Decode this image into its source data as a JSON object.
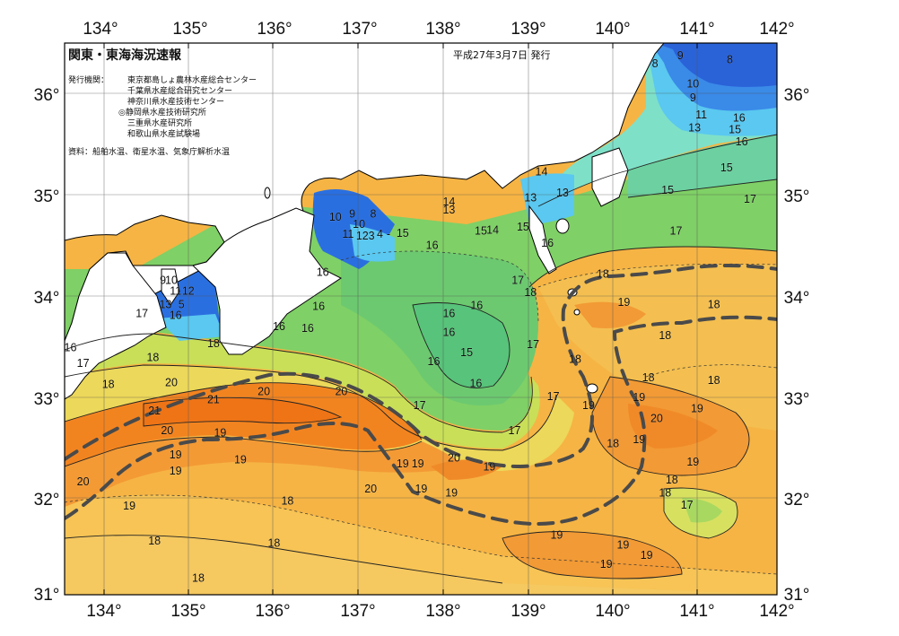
{
  "header": {
    "title": "関東・東海海況速報",
    "date": "平成27年3月7日 発行",
    "issuers_label": "発行機関：",
    "issuers": [
      "東京都島しょ農林水産総合センター",
      "千葉県水産総合研究センター",
      "神奈川県水産技術センター",
      "◎静岡県水産技術研究所",
      "三重県水産研究所",
      "和歌山県水産試験場"
    ],
    "sources": "資料：船舶水温、衛星水温、気象庁解析水温"
  },
  "axes": {
    "lon_labels": [
      "134°",
      "135°",
      "136°",
      "137°",
      "138°",
      "139°",
      "140°",
      "141°",
      "142°"
    ],
    "lat_labels": [
      "36°",
      "35°",
      "34°",
      "33°",
      "32°",
      "31°"
    ]
  },
  "legend_colors": {
    "cold": "#2a6fe0",
    "cool": "#5ad0f0",
    "mid": "#6ad070",
    "warm": "#f0d060",
    "hot": "#f08020",
    "land": "#ffffff",
    "kuroshio_axis": "#555555"
  },
  "contour_labels": [
    {
      "text": "8",
      "lon": 140.55,
      "lat": 36.26
    },
    {
      "text": "9",
      "lon": 140.85,
      "lat": 36.34
    },
    {
      "text": "8",
      "lon": 141.44,
      "lat": 36.3
    },
    {
      "text": "10",
      "lon": 141.0,
      "lat": 36.06
    },
    {
      "text": "9",
      "lon": 141.0,
      "lat": 35.92
    },
    {
      "text": "11",
      "lon": 141.1,
      "lat": 35.75
    },
    {
      "text": "16",
      "lon": 141.55,
      "lat": 35.72
    },
    {
      "text": "13",
      "lon": 141.02,
      "lat": 35.62
    },
    {
      "text": "15",
      "lon": 141.5,
      "lat": 35.6
    },
    {
      "text": "16",
      "lon": 141.58,
      "lat": 35.48
    },
    {
      "text": "15",
      "lon": 141.4,
      "lat": 35.22
    },
    {
      "text": "14",
      "lon": 139.2,
      "lat": 35.18
    },
    {
      "text": "15",
      "lon": 140.7,
      "lat": 35.0
    },
    {
      "text": "13",
      "lon": 139.45,
      "lat": 34.97
    },
    {
      "text": "13",
      "lon": 139.07,
      "lat": 34.92
    },
    {
      "text": "17",
      "lon": 141.68,
      "lat": 34.91
    },
    {
      "text": "14",
      "lon": 138.1,
      "lat": 34.88
    },
    {
      "text": "13",
      "lon": 138.1,
      "lat": 34.8
    },
    {
      "text": "10",
      "lon": 136.75,
      "lat": 34.73
    },
    {
      "text": "9",
      "lon": 136.95,
      "lat": 34.76
    },
    {
      "text": "8",
      "lon": 137.2,
      "lat": 34.76
    },
    {
      "text": "10",
      "lon": 137.03,
      "lat": 34.66
    },
    {
      "text": "11",
      "lon": 136.9,
      "lat": 34.56
    },
    {
      "text": "12",
      "lon": 137.07,
      "lat": 34.54
    },
    {
      "text": "3",
      "lon": 137.18,
      "lat": 34.54
    },
    {
      "text": "4",
      "lon": 137.28,
      "lat": 34.56
    },
    {
      "text": "-",
      "lon": 137.38,
      "lat": 34.56
    },
    {
      "text": "15",
      "lon": 137.55,
      "lat": 34.57
    },
    {
      "text": "15",
      "lon": 138.48,
      "lat": 34.59
    },
    {
      "text": "14",
      "lon": 138.62,
      "lat": 34.6
    },
    {
      "text": "15",
      "lon": 138.98,
      "lat": 34.63
    },
    {
      "text": "17",
      "lon": 140.8,
      "lat": 34.59
    },
    {
      "text": "16",
      "lon": 137.9,
      "lat": 34.45
    },
    {
      "text": "16",
      "lon": 139.27,
      "lat": 34.47
    },
    {
      "text": "16",
      "lon": 136.6,
      "lat": 34.18
    },
    {
      "text": "17",
      "lon": 138.92,
      "lat": 34.1
    },
    {
      "text": "18",
      "lon": 139.93,
      "lat": 34.16
    },
    {
      "text": "18",
      "lon": 139.07,
      "lat": 33.98
    },
    {
      "text": "19",
      "lon": 140.18,
      "lat": 33.88
    },
    {
      "text": "18",
      "lon": 141.25,
      "lat": 33.86
    },
    {
      "text": "16",
      "lon": 136.55,
      "lat": 33.84
    },
    {
      "text": "16",
      "lon": 138.43,
      "lat": 33.85
    },
    {
      "text": "16",
      "lon": 138.1,
      "lat": 33.77
    },
    {
      "text": "16",
      "lon": 136.08,
      "lat": 33.64
    },
    {
      "text": "16",
      "lon": 136.42,
      "lat": 33.62
    },
    {
      "text": "16",
      "lon": 138.1,
      "lat": 33.58
    },
    {
      "text": "18",
      "lon": 140.67,
      "lat": 33.55
    },
    {
      "text": "17",
      "lon": 139.1,
      "lat": 33.46
    },
    {
      "text": "15",
      "lon": 138.31,
      "lat": 33.38
    },
    {
      "text": "18",
      "lon": 139.6,
      "lat": 33.31
    },
    {
      "text": "16",
      "lon": 137.92,
      "lat": 33.29
    },
    {
      "text": "18",
      "lon": 140.47,
      "lat": 33.13
    },
    {
      "text": "18",
      "lon": 141.25,
      "lat": 33.1
    },
    {
      "text": "16",
      "lon": 138.42,
      "lat": 33.07
    },
    {
      "text": "17",
      "lon": 139.34,
      "lat": 32.94
    },
    {
      "text": "19",
      "lon": 140.36,
      "lat": 32.93
    },
    {
      "text": "19",
      "lon": 139.76,
      "lat": 32.85
    },
    {
      "text": "19",
      "lon": 141.05,
      "lat": 32.82
    },
    {
      "text": "20",
      "lon": 140.57,
      "lat": 32.72
    },
    {
      "text": "17",
      "lon": 137.75,
      "lat": 32.85
    },
    {
      "text": "17",
      "lon": 138.88,
      "lat": 32.6
    },
    {
      "text": "19",
      "lon": 140.36,
      "lat": 32.51
    },
    {
      "text": "18",
      "lon": 140.05,
      "lat": 32.47
    },
    {
      "text": "19",
      "lon": 141.0,
      "lat": 32.29
    },
    {
      "text": "20",
      "lon": 138.16,
      "lat": 32.33
    },
    {
      "text": "19",
      "lon": 138.58,
      "lat": 32.24
    },
    {
      "text": "19",
      "lon": 137.55,
      "lat": 32.27
    },
    {
      "text": "19",
      "lon": 137.73,
      "lat": 32.27
    },
    {
      "text": "18",
      "lon": 140.75,
      "lat": 32.11
    },
    {
      "text": "18",
      "lon": 140.67,
      "lat": 31.98
    },
    {
      "text": "19",
      "lon": 137.77,
      "lat": 32.02
    },
    {
      "text": "19",
      "lon": 138.13,
      "lat": 31.98
    },
    {
      "text": "17",
      "lon": 140.93,
      "lat": 31.86
    },
    {
      "text": "19",
      "lon": 139.38,
      "lat": 31.56
    },
    {
      "text": "19",
      "lon": 140.17,
      "lat": 31.46
    },
    {
      "text": "19",
      "lon": 140.45,
      "lat": 31.36
    },
    {
      "text": "19",
      "lon": 139.97,
      "lat": 31.27
    },
    {
      "text": "20",
      "lon": 137.17,
      "lat": 32.02
    },
    {
      "text": "18",
      "lon": 136.18,
      "lat": 31.9
    },
    {
      "text": "18",
      "lon": 136.02,
      "lat": 31.48
    },
    {
      "text": "18",
      "lon": 135.12,
      "lat": 31.13
    },
    {
      "text": "18",
      "lon": 134.6,
      "lat": 31.5
    },
    {
      "text": "19",
      "lon": 134.3,
      "lat": 31.85
    },
    {
      "text": "20",
      "lon": 133.75,
      "lat": 32.09
    },
    {
      "text": "19",
      "lon": 134.85,
      "lat": 32.2
    },
    {
      "text": "19",
      "lon": 134.85,
      "lat": 32.36
    },
    {
      "text": "19",
      "lon": 135.62,
      "lat": 32.31
    },
    {
      "text": "19",
      "lon": 135.38,
      "lat": 32.58
    },
    {
      "text": "20",
      "lon": 134.75,
      "lat": 32.6
    },
    {
      "text": "21",
      "lon": 134.6,
      "lat": 32.8
    },
    {
      "text": "21",
      "lon": 135.3,
      "lat": 32.91
    },
    {
      "text": "20",
      "lon": 134.8,
      "lat": 33.08
    },
    {
      "text": "20",
      "lon": 135.9,
      "lat": 32.99
    },
    {
      "text": "20",
      "lon": 136.82,
      "lat": 32.99
    },
    {
      "text": "18",
      "lon": 134.05,
      "lat": 33.06
    },
    {
      "text": "18",
      "lon": 134.58,
      "lat": 33.33
    },
    {
      "text": "17",
      "lon": 133.75,
      "lat": 33.27
    },
    {
      "text": "16",
      "lon": 133.6,
      "lat": 33.43
    },
    {
      "text": "18",
      "lon": 135.3,
      "lat": 33.47
    },
    {
      "text": "17",
      "lon": 134.45,
      "lat": 33.77
    },
    {
      "text": "16",
      "lon": 134.85,
      "lat": 33.75
    },
    {
      "text": "13",
      "lon": 134.73,
      "lat": 33.86
    },
    {
      "text": "5",
      "lon": 134.92,
      "lat": 33.86
    },
    {
      "text": "11",
      "lon": 134.85,
      "lat": 33.99
    },
    {
      "text": "12",
      "lon": 135.0,
      "lat": 33.99
    },
    {
      "text": "9",
      "lon": 134.7,
      "lat": 34.1
    },
    {
      "text": "10",
      "lon": 134.8,
      "lat": 34.1
    }
  ]
}
